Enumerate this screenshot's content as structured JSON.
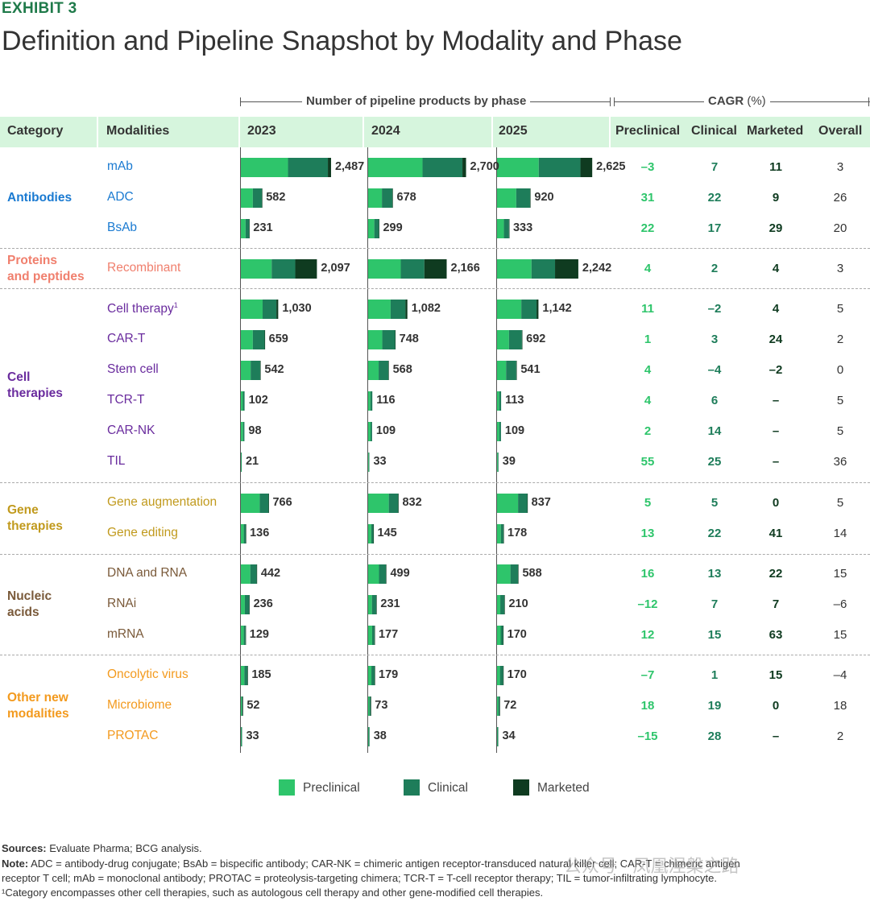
{
  "exhibit": "EXHIBIT 3",
  "title": "Definition and Pipeline Snapshot by Modality and Phase",
  "group_headers": {
    "pipeline": "Number of pipeline products by phase",
    "cagr": "CAGR",
    "cagr_unit": "(%)"
  },
  "columns": {
    "category": "Category",
    "modalities": "Modalities",
    "y2023": "2023",
    "y2024": "2024",
    "y2025": "2025",
    "preclinical": "Preclinical",
    "clinical": "Clinical",
    "marketed": "Marketed",
    "overall": "Overall"
  },
  "colors": {
    "preclinical": "#2ec56b",
    "clinical": "#1e7d5a",
    "marketed": "#0f3b20",
    "header_bg": "#d6f5dd",
    "cagr_preclinical": "#2ec56b",
    "cagr_clinical": "#1e7d5a",
    "cagr_marketed": "#0f3b20",
    "cagr_overall": "#333333"
  },
  "categories": [
    {
      "name": [
        "Antibodies"
      ],
      "color": "#1a7ad1"
    },
    {
      "name": [
        "Proteins",
        "and peptides"
      ],
      "color": "#f07f6d"
    },
    {
      "name": [
        "Cell",
        "therapies"
      ],
      "color": "#6a2c9e"
    },
    {
      "name": [
        "Gene",
        "therapies"
      ],
      "color": "#c19a1d"
    },
    {
      "name": [
        "Nucleic",
        "acids"
      ],
      "color": "#7a5a3a"
    },
    {
      "name": [
        "Other new",
        "modalities"
      ],
      "color": "#f39a1e"
    }
  ],
  "chart_data": {
    "type": "bar",
    "stacked": true,
    "years": [
      "2023",
      "2024",
      "2025"
    ],
    "series_names": [
      "Preclinical",
      "Clinical",
      "Marketed"
    ],
    "rows": [
      {
        "cat": 0,
        "modality": "mAb",
        "sup": "",
        "totals": [
          "2,487",
          "2,700",
          "2,625"
        ],
        "values": [
          [
            1300,
            1100,
            87
          ],
          [
            1500,
            1100,
            100
          ],
          [
            1150,
            1150,
            325
          ]
        ],
        "cagr": [
          "–3",
          "7",
          "11",
          "3"
        ]
      },
      {
        "cat": 0,
        "modality": "ADC",
        "sup": "",
        "totals": [
          "582",
          "678",
          "920"
        ],
        "values": [
          [
            330,
            250,
            2
          ],
          [
            380,
            290,
            8
          ],
          [
            530,
            380,
            10
          ]
        ],
        "cagr": [
          "31",
          "22",
          "9",
          "26"
        ]
      },
      {
        "cat": 0,
        "modality": "BsAb",
        "sup": "",
        "totals": [
          "231",
          "299",
          "333"
        ],
        "values": [
          [
            130,
            100,
            1
          ],
          [
            170,
            127,
            2
          ],
          [
            190,
            140,
            3
          ]
        ],
        "cagr": [
          "22",
          "17",
          "29",
          "20"
        ]
      },
      {
        "cat": 1,
        "modality": "Recombinant",
        "sup": "",
        "totals": [
          "2,097",
          "2,166",
          "2,242"
        ],
        "values": [
          [
            850,
            650,
            597
          ],
          [
            900,
            650,
            616
          ],
          [
            950,
            650,
            642
          ]
        ],
        "cagr": [
          "4",
          "2",
          "4",
          "3"
        ]
      },
      {
        "cat": 2,
        "modality": "Cell therapy",
        "sup": "1",
        "totals": [
          "1,030",
          "1,082",
          "1,142"
        ],
        "values": [
          [
            600,
            380,
            50
          ],
          [
            620,
            410,
            52
          ],
          [
            670,
            420,
            52
          ]
        ],
        "cagr": [
          "11",
          "–2",
          "4",
          "5"
        ]
      },
      {
        "cat": 2,
        "modality": "CAR-T",
        "sup": "",
        "totals": [
          "659",
          "748",
          "692"
        ],
        "values": [
          [
            330,
            325,
            4
          ],
          [
            390,
            353,
            5
          ],
          [
            330,
            356,
            6
          ]
        ],
        "cagr": [
          "1",
          "3",
          "24",
          "2"
        ]
      },
      {
        "cat": 2,
        "modality": "Stem cell",
        "sup": "",
        "totals": [
          "542",
          "568",
          "541"
        ],
        "values": [
          [
            270,
            262,
            10
          ],
          [
            290,
            268,
            10
          ],
          [
            250,
            281,
            10
          ]
        ],
        "cagr": [
          "4",
          "–4",
          "–2",
          "0"
        ]
      },
      {
        "cat": 2,
        "modality": "TCR-T",
        "sup": "",
        "totals": [
          "102",
          "116",
          "113"
        ],
        "values": [
          [
            55,
            47,
            0
          ],
          [
            62,
            54,
            0
          ],
          [
            60,
            53,
            0
          ]
        ],
        "cagr": [
          "4",
          "6",
          "–",
          "5"
        ]
      },
      {
        "cat": 2,
        "modality": "CAR-NK",
        "sup": "",
        "totals": [
          "98",
          "109",
          "109"
        ],
        "values": [
          [
            60,
            38,
            0
          ],
          [
            66,
            43,
            0
          ],
          [
            64,
            45,
            0
          ]
        ],
        "cagr": [
          "2",
          "14",
          "–",
          "5"
        ]
      },
      {
        "cat": 2,
        "modality": "TIL",
        "sup": "",
        "totals": [
          "21",
          "33",
          "39"
        ],
        "values": [
          [
            11,
            10,
            0
          ],
          [
            18,
            15,
            0
          ],
          [
            20,
            19,
            0
          ]
        ],
        "cagr": [
          "55",
          "25",
          "–",
          "36"
        ]
      },
      {
        "cat": 3,
        "modality": "Gene augmentation",
        "sup": "",
        "totals": [
          "766",
          "832",
          "837"
        ],
        "values": [
          [
            520,
            244,
            2
          ],
          [
            570,
            259,
            3
          ],
          [
            580,
            254,
            3
          ]
        ],
        "cagr": [
          "5",
          "5",
          "0",
          "5"
        ]
      },
      {
        "cat": 3,
        "modality": "Gene editing",
        "sup": "",
        "totals": [
          "136",
          "145",
          "178"
        ],
        "values": [
          [
            80,
            55,
            1
          ],
          [
            85,
            59,
            1
          ],
          [
            105,
            71,
            2
          ]
        ],
        "cagr": [
          "13",
          "22",
          "41",
          "14"
        ]
      },
      {
        "cat": 4,
        "modality": "DNA and RNA",
        "sup": "",
        "totals": [
          "442",
          "499",
          "588"
        ],
        "values": [
          [
            260,
            175,
            7
          ],
          [
            300,
            190,
            9
          ],
          [
            370,
            208,
            10
          ]
        ],
        "cagr": [
          "16",
          "13",
          "22",
          "15"
        ]
      },
      {
        "cat": 4,
        "modality": "RNAi",
        "sup": "",
        "totals": [
          "236",
          "231",
          "210"
        ],
        "values": [
          [
            110,
            120,
            6
          ],
          [
            105,
            119,
            7
          ],
          [
            90,
            113,
            7
          ]
        ],
        "cagr": [
          "–12",
          "7",
          "7",
          "–6"
        ]
      },
      {
        "cat": 4,
        "modality": "mRNA",
        "sup": "",
        "totals": [
          "129",
          "177",
          "170"
        ],
        "values": [
          [
            80,
            48,
            1
          ],
          [
            110,
            65,
            2
          ],
          [
            100,
            66,
            4
          ]
        ],
        "cagr": [
          "12",
          "15",
          "63",
          "15"
        ]
      },
      {
        "cat": 5,
        "modality": "Oncolytic virus",
        "sup": "",
        "totals": [
          "185",
          "179",
          "170"
        ],
        "values": [
          [
            95,
            89,
            1
          ],
          [
            90,
            88,
            1
          ],
          [
            80,
            89,
            1
          ]
        ],
        "cagr": [
          "–7",
          "1",
          "15",
          "–4"
        ]
      },
      {
        "cat": 5,
        "modality": "Microbiome",
        "sup": "",
        "totals": [
          "52",
          "73",
          "72"
        ],
        "values": [
          [
            25,
            26,
            1
          ],
          [
            36,
            36,
            1
          ],
          [
            36,
            35,
            1
          ]
        ],
        "cagr": [
          "18",
          "19",
          "0",
          "18"
        ]
      },
      {
        "cat": 5,
        "modality": "PROTAC",
        "sup": "",
        "totals": [
          "33",
          "38",
          "34"
        ],
        "values": [
          [
            10,
            23,
            0
          ],
          [
            12,
            26,
            0
          ],
          [
            9,
            25,
            0
          ]
        ],
        "cagr": [
          "–15",
          "28",
          "–",
          "2"
        ]
      }
    ]
  },
  "legend": [
    "Preclinical",
    "Clinical",
    "Marketed"
  ],
  "footnotes": {
    "sources_label": "Sources:",
    "sources": "Evaluate Pharma; BCG analysis.",
    "note_label": "Note:",
    "note_line1": "ADC = antibody-drug conjugate; BsAb = bispecific antibody; CAR-NK = chimeric antigen receptor-transduced natural killer cell; CAR-T = chimeric antigen",
    "note_line2": "receptor T cell; mAb = monoclonal antibody; PROTAC = proteolysis-targeting chimera; TCR-T = T-cell receptor therapy; TIL = tumor-infiltrating lymphocyte.",
    "footnote1": "¹Category encompasses other cell therapies, such as autologous cell therapy and other gene-modified cell therapies."
  },
  "watermark": "公众号 · 凤凰涅槃之路"
}
